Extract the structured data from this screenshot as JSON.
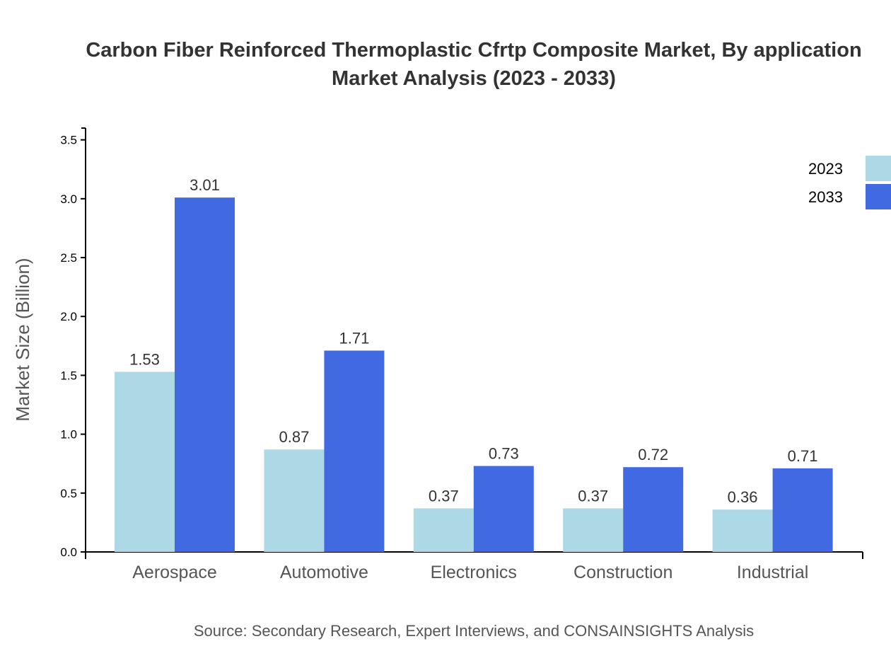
{
  "chart_data": {
    "type": "bar",
    "title_lines": [
      "Carbon Fiber Reinforced Thermoplastic Cfrtp Composite Market, By application",
      "Market Analysis (2023 - 2033)"
    ],
    "xlabel": "",
    "ylabel": "Market Size (Billion)",
    "categories": [
      "Aerospace",
      "Automotive",
      "Electronics",
      "Construction",
      "Industrial"
    ],
    "series": [
      {
        "name": "2023",
        "color": "#add8e6",
        "values": [
          1.53,
          0.87,
          0.37,
          0.37,
          0.36
        ]
      },
      {
        "name": "2033",
        "color": "#4169e1",
        "values": [
          3.01,
          1.71,
          0.73,
          0.72,
          0.71
        ]
      }
    ],
    "ylim": [
      0,
      3.6
    ],
    "yticks": [
      "0.0",
      "0.5",
      "1.0",
      "1.5",
      "2.0",
      "2.5",
      "3.0",
      "3.5"
    ],
    "grid": false,
    "legend_position": "top-right",
    "source": "Source: Secondary Research, Expert Interviews, and CONSAINSIGHTS Analysis"
  }
}
